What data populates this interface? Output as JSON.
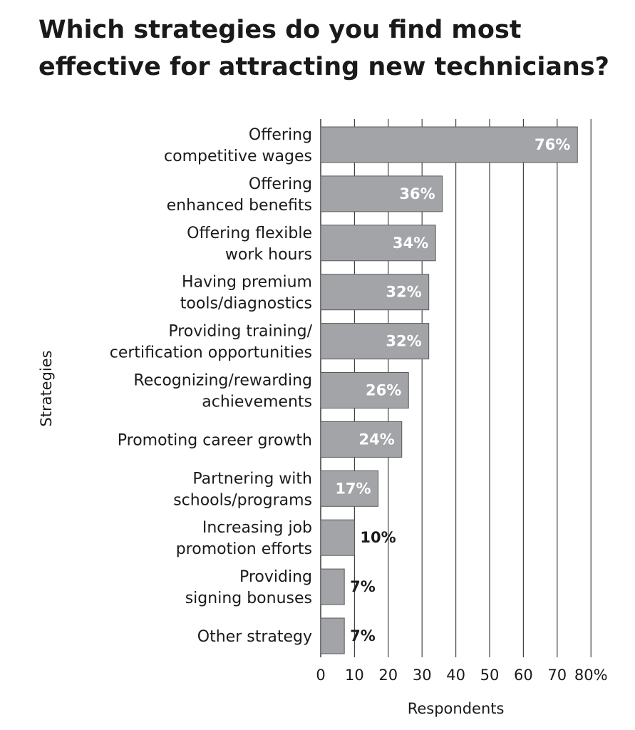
{
  "chart_data": {
    "type": "bar",
    "orientation": "horizontal",
    "title_lines": [
      "Which strategies do you find most",
      "effective for attracting new technicians?"
    ],
    "categories": [
      [
        "Offering",
        "competitive wages"
      ],
      [
        "Offering",
        "enhanced benefits"
      ],
      [
        "Offering flexible",
        "work hours"
      ],
      [
        "Having premium",
        "tools/diagnostics"
      ],
      [
        "Providing training/",
        "certification opportunities"
      ],
      [
        "Recognizing/rewarding",
        "achievements"
      ],
      [
        "Promoting career growth"
      ],
      [
        "Partnering with",
        "schools/programs"
      ],
      [
        "Increasing job",
        "promotion efforts"
      ],
      [
        "Providing",
        "signing bonuses"
      ],
      [
        "Other strategy"
      ]
    ],
    "values": [
      76,
      36,
      34,
      32,
      32,
      26,
      24,
      17,
      10,
      7,
      7
    ],
    "value_labels": [
      "76%",
      "36%",
      "34%",
      "32%",
      "32%",
      "26%",
      "24%",
      "17%",
      "10%",
      "7%",
      "7%"
    ],
    "xlabel": "Respondents",
    "ylabel": "Strategies",
    "xlim": [
      0,
      80
    ],
    "xticks": [
      "0",
      "10",
      "20",
      "30",
      "40",
      "50",
      "60",
      "70",
      "80%"
    ],
    "grid": "vertical",
    "colors": {
      "bar": "#a3a4a7",
      "bar_stroke": "#5a5a5a",
      "label_inside": "#ffffff",
      "label_outside": "#1a1a1a",
      "grid": "#444444"
    }
  }
}
